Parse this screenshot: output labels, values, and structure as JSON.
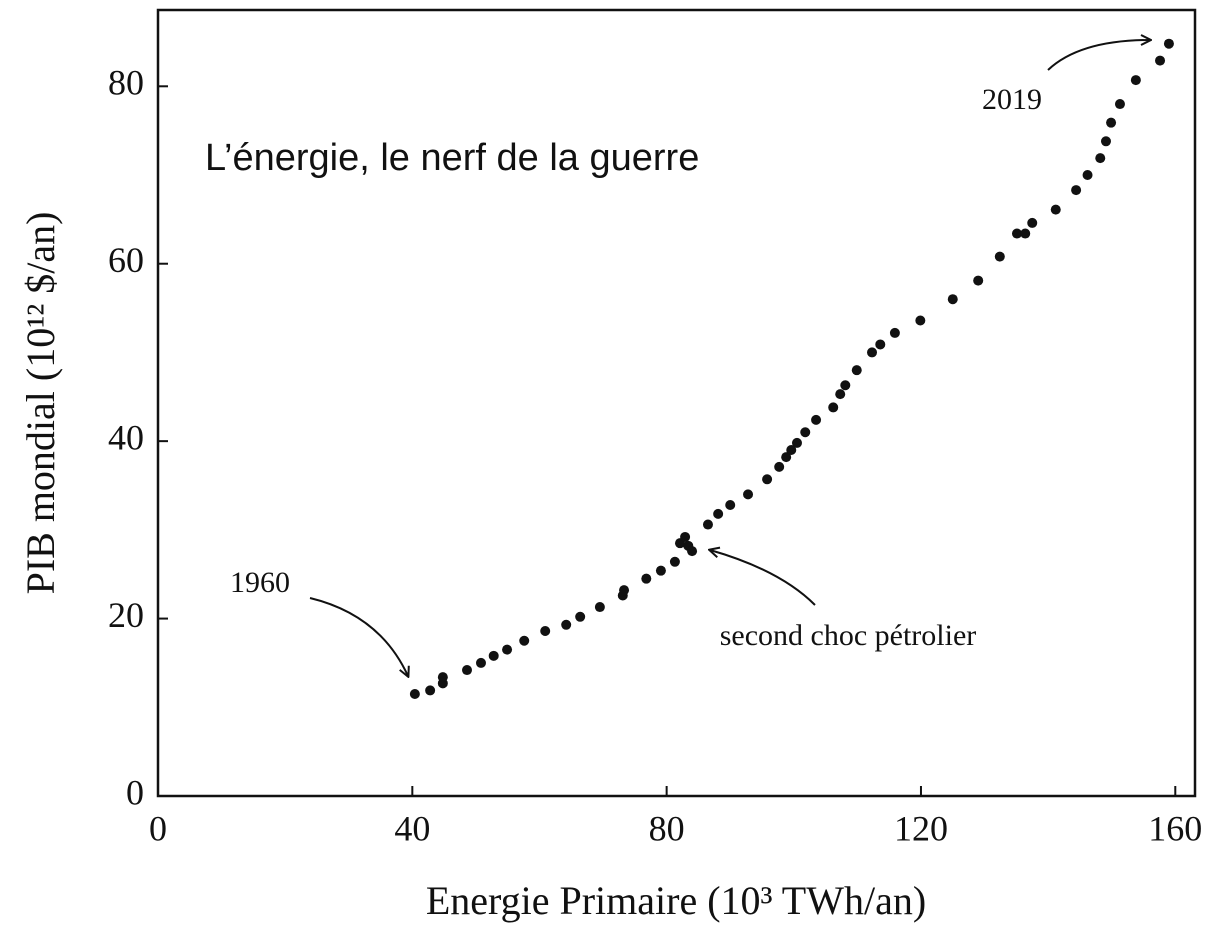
{
  "chart_data": {
    "type": "scatter",
    "title": "L’énergie, le nerf de la guerre",
    "x_label": "Energie Primaire (10³ TWh/an)",
    "y_label": "PIB mondial (10¹² $/an)",
    "annotations": [
      "2019",
      "1960",
      "second choc pétrolier"
    ],
    "color": "#111111",
    "x": [
      40.4,
      42.8,
      44.8,
      44.8,
      48.6,
      50.8,
      52.8,
      54.9,
      57.6,
      60.9,
      64.2,
      66.4,
      69.5,
      73.1,
      73.3,
      76.8,
      79.1,
      81.3,
      82.1,
      82.9,
      83.4,
      84.0,
      86.5,
      88.1,
      90.0,
      92.8,
      95.8,
      97.7,
      98.8,
      99.6,
      100.5,
      101.8,
      103.5,
      106.2,
      107.3,
      108.1,
      109.9,
      112.3,
      113.6,
      115.9,
      119.9,
      125.0,
      129.0,
      132.4,
      135.1,
      136.4,
      137.5,
      141.2,
      144.4,
      146.2,
      148.2,
      149.1,
      149.9,
      151.3,
      153.8,
      157.6,
      159.0
    ],
    "values": [
      11.5,
      11.9,
      12.7,
      13.4,
      14.2,
      15.0,
      15.8,
      16.5,
      17.5,
      18.6,
      19.3,
      20.2,
      21.3,
      22.6,
      23.2,
      24.5,
      25.4,
      26.4,
      28.5,
      29.2,
      28.2,
      27.6,
      30.6,
      31.8,
      32.8,
      34.0,
      35.7,
      37.1,
      38.2,
      39.0,
      39.8,
      41.0,
      42.4,
      43.8,
      45.3,
      46.3,
      48.0,
      50.0,
      50.9,
      52.2,
      53.6,
      56.0,
      58.1,
      60.8,
      63.4,
      63.4,
      64.6,
      66.1,
      68.3,
      70.0,
      71.9,
      73.8,
      75.9,
      78.0,
      80.7,
      82.9,
      84.8
    ],
    "xlim": [
      0,
      163.1
    ],
    "ylim": [
      0,
      88.6
    ],
    "xticks": [
      0,
      40,
      80,
      120,
      160
    ],
    "yticks": [
      0,
      20,
      40,
      60,
      80
    ],
    "grid": false
  }
}
